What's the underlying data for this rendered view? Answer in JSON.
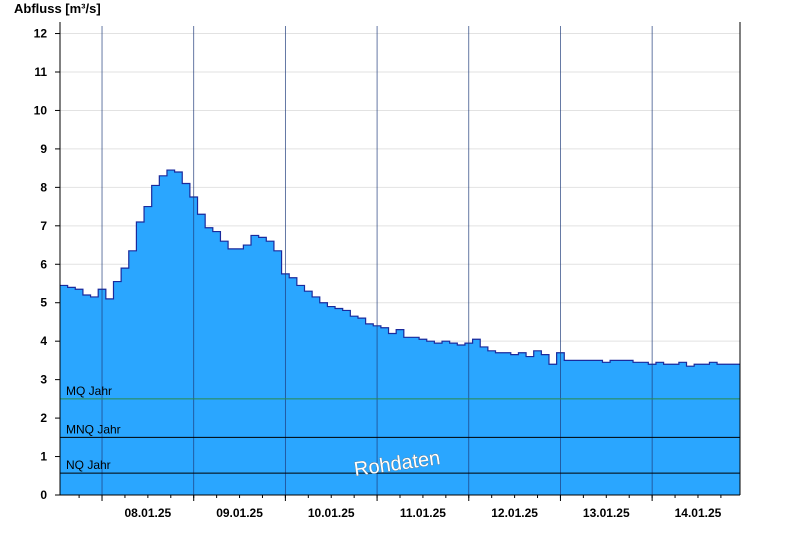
{
  "chart_data": {
    "type": "area",
    "ylabel": "Abfluss [m³/s]",
    "ylim": [
      0,
      12.3
    ],
    "y_ticks": [
      0,
      1,
      2,
      3,
      4,
      5,
      6,
      7,
      8,
      9,
      10,
      11,
      12
    ],
    "x_unit": "hours",
    "xlim": [
      "07.01.25 13:00",
      "14.01.25 23:00"
    ],
    "x_tick_labels": [
      "08.01.25",
      "09.01.25",
      "10.01.25",
      "11.01.25",
      "12.01.25",
      "13.01.25",
      "14.01.25"
    ],
    "grid": {
      "horizontal": true,
      "vertical_day_lines": true
    },
    "fill_color": "#2aa6ff",
    "line_color": "#1a2a9c",
    "series": [
      {
        "x": [
          "07.01.25 13:00",
          "07.01.25 15:00",
          "07.01.25 17:00",
          "07.01.25 19:00",
          "07.01.25 21:00",
          "07.01.25 23:00",
          "08.01.25 01:00",
          "08.01.25 03:00",
          "08.01.25 05:00",
          "08.01.25 07:00",
          "08.01.25 09:00",
          "08.01.25 11:00",
          "08.01.25 13:00",
          "08.01.25 15:00",
          "08.01.25 17:00",
          "08.01.25 19:00",
          "08.01.25 21:00",
          "08.01.25 23:00",
          "09.01.25 01:00",
          "09.01.25 03:00",
          "09.01.25 05:00",
          "09.01.25 07:00",
          "09.01.25 09:00",
          "09.01.25 11:00",
          "09.01.25 13:00",
          "09.01.25 15:00",
          "09.01.25 17:00",
          "09.01.25 19:00",
          "09.01.25 21:00",
          "09.01.25 23:00",
          "10.01.25 01:00",
          "10.01.25 03:00",
          "10.01.25 05:00",
          "10.01.25 07:00",
          "10.01.25 09:00",
          "10.01.25 11:00",
          "10.01.25 13:00",
          "10.01.25 15:00",
          "10.01.25 17:00",
          "10.01.25 19:00",
          "10.01.25 21:00",
          "10.01.25 23:00",
          "11.01.25 01:00",
          "11.01.25 03:00",
          "11.01.25 05:00",
          "11.01.25 07:00",
          "11.01.25 09:00",
          "11.01.25 11:00",
          "11.01.25 13:00",
          "11.01.25 15:00",
          "11.01.25 17:00",
          "11.01.25 19:00",
          "11.01.25 21:00",
          "11.01.25 23:00",
          "12.01.25 01:00",
          "12.01.25 03:00",
          "12.01.25 05:00",
          "12.01.25 07:00",
          "12.01.25 09:00",
          "12.01.25 11:00",
          "12.01.25 13:00",
          "12.01.25 15:00",
          "12.01.25 17:00",
          "12.01.25 19:00",
          "12.01.25 21:00",
          "12.01.25 23:00",
          "13.01.25 01:00",
          "13.01.25 03:00",
          "13.01.25 05:00",
          "13.01.25 07:00",
          "13.01.25 09:00",
          "13.01.25 11:00",
          "13.01.25 13:00",
          "13.01.25 15:00",
          "13.01.25 17:00",
          "13.01.25 19:00",
          "13.01.25 21:00",
          "13.01.25 23:00",
          "14.01.25 01:00",
          "14.01.25 03:00",
          "14.01.25 05:00",
          "14.01.25 07:00",
          "14.01.25 09:00",
          "14.01.25 11:00",
          "14.01.25 13:00",
          "14.01.25 15:00",
          "14.01.25 17:00",
          "14.01.25 19:00",
          "14.01.25 21:00",
          "14.01.25 23:00"
        ],
        "y": [
          5.45,
          5.4,
          5.35,
          5.2,
          5.15,
          5.35,
          5.1,
          5.55,
          5.9,
          6.35,
          7.1,
          7.5,
          8.05,
          8.3,
          8.45,
          8.4,
          8.1,
          7.75,
          7.3,
          6.95,
          6.85,
          6.6,
          6.4,
          6.4,
          6.5,
          6.75,
          6.7,
          6.6,
          6.35,
          5.75,
          5.65,
          5.45,
          5.3,
          5.15,
          5.0,
          4.9,
          4.85,
          4.8,
          4.65,
          4.6,
          4.45,
          4.4,
          4.35,
          4.2,
          4.3,
          4.1,
          4.1,
          4.05,
          4.0,
          3.95,
          4.0,
          3.95,
          3.9,
          3.95,
          4.05,
          3.85,
          3.75,
          3.7,
          3.7,
          3.65,
          3.7,
          3.6,
          3.75,
          3.65,
          3.4,
          3.7,
          3.5,
          3.5,
          3.5,
          3.5,
          3.5,
          3.45,
          3.5,
          3.5,
          3.5,
          3.45,
          3.45,
          3.4,
          3.45,
          3.4,
          3.4,
          3.45,
          3.35,
          3.4,
          3.4,
          3.45,
          3.4,
          3.4,
          3.4,
          3.4
        ]
      }
    ],
    "reference_lines": [
      {
        "label": "MQ Jahr",
        "value": 2.5,
        "color": "#2a8a4a"
      },
      {
        "label": "MNQ Jahr",
        "value": 1.5,
        "color": "#000000"
      },
      {
        "label": "NQ Jahr",
        "value": 0.57,
        "color": "#000000"
      }
    ],
    "watermark": "Rohdaten"
  }
}
